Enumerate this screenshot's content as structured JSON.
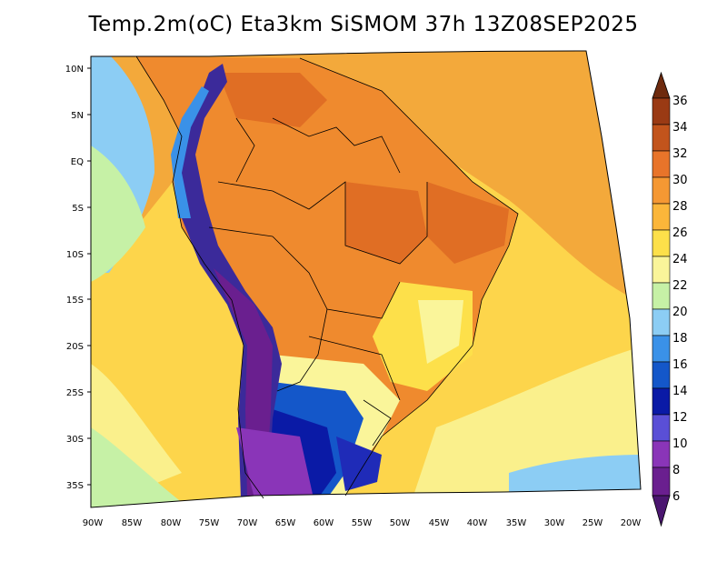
{
  "title": "Temp.2m(oC) Eta3km SiSMOM 37h 13Z08SEP2025",
  "lat_axis": {
    "labels": [
      "10N",
      "5N",
      "EQ",
      "5S",
      "10S",
      "15S",
      "20S",
      "25S",
      "30S",
      "35S"
    ],
    "values": [
      10,
      5,
      0,
      -5,
      -10,
      -15,
      -20,
      -25,
      -30,
      -35
    ]
  },
  "lon_axis": {
    "labels": [
      "90W",
      "85W",
      "80W",
      "75W",
      "70W",
      "65W",
      "60W",
      "55W",
      "50W",
      "45W",
      "40W",
      "35W",
      "30W",
      "25W",
      "20W"
    ],
    "values": [
      -90,
      -85,
      -80,
      -75,
      -70,
      -65,
      -60,
      -55,
      -50,
      -45,
      -40,
      -35,
      -30,
      -25,
      -20
    ]
  },
  "colorbar": {
    "unit": "oC",
    "labels": [
      "6",
      "8",
      "10",
      "12",
      "14",
      "16",
      "18",
      "20",
      "22",
      "24",
      "26",
      "28",
      "30",
      "32",
      "34",
      "36"
    ],
    "colors": [
      "#6a1f8f",
      "#8a35b8",
      "#5a4fd6",
      "#1f2bb8",
      "#0a1aa6",
      "#1457c9",
      "#3a91e8",
      "#8ccdf4",
      "#c6f1a6",
      "#faf59a",
      "#fde04a",
      "#fbb63a",
      "#f59833",
      "#e8742a",
      "#c2541c",
      "#9a3a14",
      "#6e2a0e"
    ]
  },
  "field_colors": {
    "ocean_warm": "#f3a93b",
    "ocean_mid": "#fdd54b",
    "ocean_cool": "#faf08c",
    "ocean_cold": "#8ccdf4",
    "land_hot": "#ef8a2e",
    "land_very_hot": "#e06e24",
    "andes_cold": "#3b2a9a",
    "andes_very_cold": "#6a1f8f",
    "patagonia": "#1f2bb8"
  }
}
